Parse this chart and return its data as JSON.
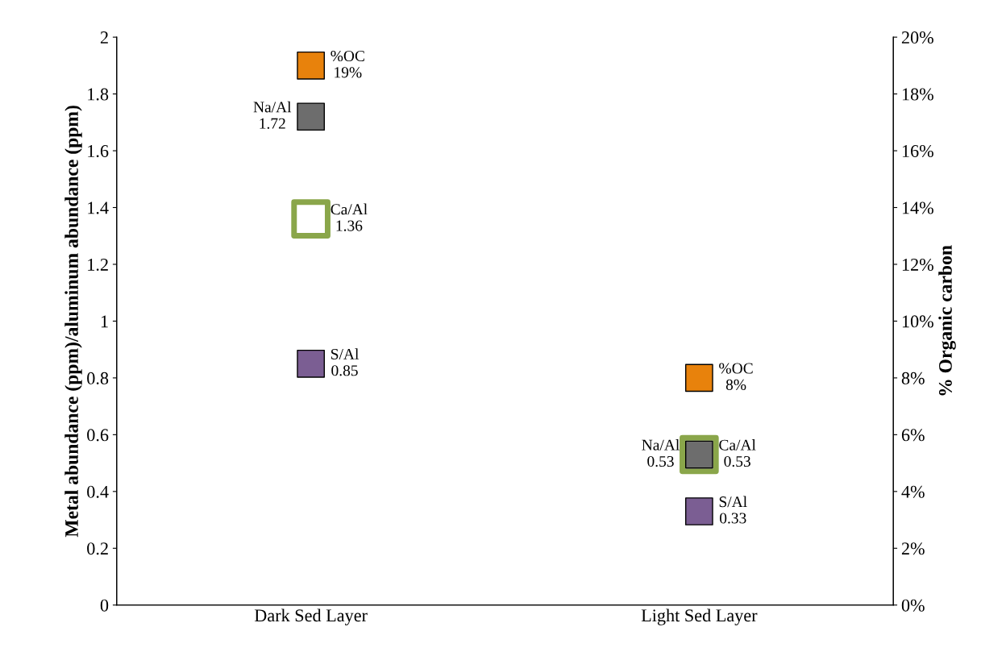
{
  "chart_data": {
    "type": "scatter",
    "marker": "square",
    "legend": false,
    "grid": false,
    "categories": [
      "Dark Sed Layer",
      "Light Sed Layer"
    ],
    "ylabel": "Metal abundance (ppm)/aluminum abundance (ppm)",
    "y2label": "% Organic carbon",
    "ylim": [
      0,
      2
    ],
    "yticks": [
      0,
      0.2,
      0.4,
      0.6,
      0.8,
      1,
      1.2,
      1.4,
      1.6,
      1.8,
      2
    ],
    "y2lim": [
      0,
      20
    ],
    "y2ticks": [
      {
        "value": 0,
        "label": "0%"
      },
      {
        "value": 2,
        "label": "2%"
      },
      {
        "value": 4,
        "label": "4%"
      },
      {
        "value": 6,
        "label": "6%"
      },
      {
        "value": 8,
        "label": "8%"
      },
      {
        "value": 10,
        "label": "10%"
      },
      {
        "value": 12,
        "label": "12%"
      },
      {
        "value": 14,
        "label": "14%"
      },
      {
        "value": 16,
        "label": "16%"
      },
      {
        "value": 18,
        "label": "18%"
      },
      {
        "value": 20,
        "label": "20%"
      }
    ],
    "series": [
      {
        "name": "S/Al",
        "color": "#7b5e93",
        "values": [
          0.85,
          0.33
        ],
        "value_labels": [
          "0.85",
          "0.33"
        ]
      },
      {
        "name": "Ca/Al",
        "color": "#8aa64a",
        "values": [
          1.36,
          0.53
        ],
        "value_labels": [
          "1.36",
          "0.53"
        ]
      },
      {
        "name": "Na/Al",
        "color": "#6d6d6d",
        "values": [
          1.72,
          0.53
        ],
        "value_labels": [
          "1.72",
          "0.53"
        ]
      },
      {
        "name": "%OC",
        "color": "#e8820c",
        "axis": "y2",
        "values": [
          19,
          8
        ],
        "value_labels": [
          "19%",
          "8%"
        ]
      }
    ]
  }
}
